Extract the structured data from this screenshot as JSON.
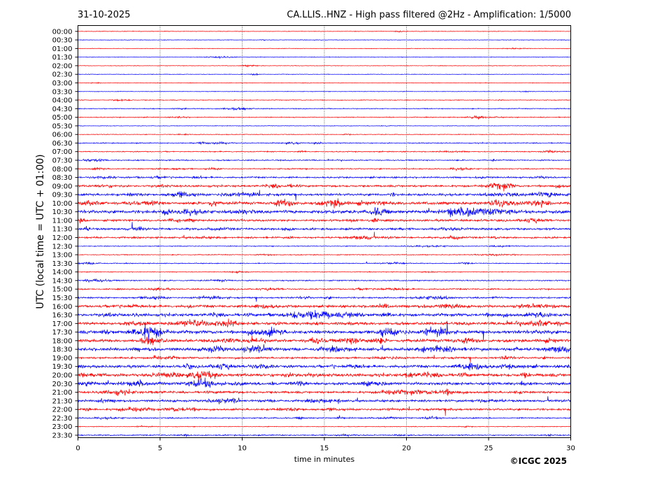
{
  "chart_data": {
    "type": "line",
    "date": "31-10-2025",
    "title": "CA.LLIS..HNZ - High pass filtered @2Hz - Amplification: 1/5000",
    "xlabel": "time in minutes",
    "ylabel": "UTC (local time = UTC + 01:00)",
    "copyright": "©ICGC 2025",
    "xlim": [
      0,
      30
    ],
    "xticks": [
      "0",
      "5",
      "10",
      "15",
      "20",
      "25",
      "30"
    ],
    "xgrid": true,
    "trace_colors": [
      "#ff0000",
      "#0000ff"
    ],
    "rows": [
      {
        "label": "00:00",
        "color": "#ff0000",
        "activity": 0.1
      },
      {
        "label": "00:30",
        "color": "#0000ff",
        "activity": 0.1
      },
      {
        "label": "01:00",
        "color": "#ff0000",
        "activity": 0.1
      },
      {
        "label": "01:30",
        "color": "#0000ff",
        "activity": 0.1
      },
      {
        "label": "02:00",
        "color": "#ff0000",
        "activity": 0.1
      },
      {
        "label": "02:30",
        "color": "#0000ff",
        "activity": 0.1
      },
      {
        "label": "03:00",
        "color": "#ff0000",
        "activity": 0.1
      },
      {
        "label": "03:30",
        "color": "#0000ff",
        "activity": 0.1
      },
      {
        "label": "04:00",
        "color": "#ff0000",
        "activity": 0.15
      },
      {
        "label": "04:30",
        "color": "#0000ff",
        "activity": 0.2
      },
      {
        "label": "05:00",
        "color": "#ff0000",
        "activity": 0.2
      },
      {
        "label": "05:30",
        "color": "#0000ff",
        "activity": 0.1
      },
      {
        "label": "06:00",
        "color": "#ff0000",
        "activity": 0.15
      },
      {
        "label": "06:30",
        "color": "#0000ff",
        "activity": 0.25
      },
      {
        "label": "07:00",
        "color": "#ff0000",
        "activity": 0.25
      },
      {
        "label": "07:30",
        "color": "#0000ff",
        "activity": 0.3
      },
      {
        "label": "08:00",
        "color": "#ff0000",
        "activity": 0.3
      },
      {
        "label": "08:30",
        "color": "#0000ff",
        "activity": 0.45
      },
      {
        "label": "09:00",
        "color": "#ff0000",
        "activity": 0.6
      },
      {
        "label": "09:30",
        "color": "#0000ff",
        "activity": 0.7
      },
      {
        "label": "10:00",
        "color": "#ff0000",
        "activity": 0.9
      },
      {
        "label": "10:30",
        "color": "#0000ff",
        "activity": 1.0
      },
      {
        "label": "11:00",
        "color": "#ff0000",
        "activity": 0.6
      },
      {
        "label": "11:30",
        "color": "#0000ff",
        "activity": 0.6
      },
      {
        "label": "12:00",
        "color": "#ff0000",
        "activity": 0.5
      },
      {
        "label": "12:30",
        "color": "#0000ff",
        "activity": 0.2
      },
      {
        "label": "13:00",
        "color": "#ff0000",
        "activity": 0.2
      },
      {
        "label": "13:30",
        "color": "#0000ff",
        "activity": 0.2
      },
      {
        "label": "14:00",
        "color": "#ff0000",
        "activity": 0.15
      },
      {
        "label": "14:30",
        "color": "#0000ff",
        "activity": 0.3
      },
      {
        "label": "15:00",
        "color": "#ff0000",
        "activity": 0.35
      },
      {
        "label": "15:30",
        "color": "#0000ff",
        "activity": 0.45
      },
      {
        "label": "16:00",
        "color": "#ff0000",
        "activity": 0.75
      },
      {
        "label": "16:30",
        "color": "#0000ff",
        "activity": 0.9
      },
      {
        "label": "17:00",
        "color": "#ff0000",
        "activity": 0.9
      },
      {
        "label": "17:30",
        "color": "#0000ff",
        "activity": 1.0
      },
      {
        "label": "18:00",
        "color": "#ff0000",
        "activity": 0.9
      },
      {
        "label": "18:30",
        "color": "#0000ff",
        "activity": 0.95
      },
      {
        "label": "19:00",
        "color": "#ff0000",
        "activity": 0.55
      },
      {
        "label": "19:30",
        "color": "#0000ff",
        "activity": 0.8
      },
      {
        "label": "20:00",
        "color": "#ff0000",
        "activity": 0.95
      },
      {
        "label": "20:30",
        "color": "#0000ff",
        "activity": 0.9
      },
      {
        "label": "21:00",
        "color": "#ff0000",
        "activity": 0.65
      },
      {
        "label": "21:30",
        "color": "#0000ff",
        "activity": 0.65
      },
      {
        "label": "22:00",
        "color": "#ff0000",
        "activity": 0.6
      },
      {
        "label": "22:30",
        "color": "#0000ff",
        "activity": 0.35
      },
      {
        "label": "23:00",
        "color": "#ff0000",
        "activity": 0.15
      },
      {
        "label": "23:30",
        "color": "#0000ff",
        "activity": 0.3
      }
    ]
  }
}
